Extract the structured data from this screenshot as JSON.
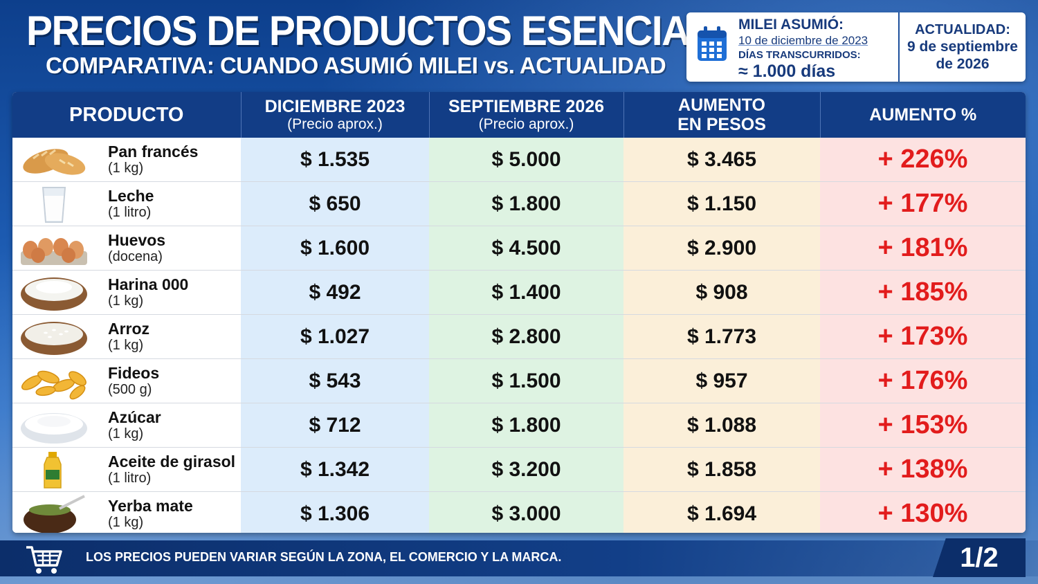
{
  "header": {
    "title": "PRECIOS DE PRODUCTOS ESENCIALES",
    "subtitle": "COMPARATIVA: CUANDO ASUMIÓ MILEI vs.  ACTUALIDAD"
  },
  "info": {
    "icon": "calendar-icon",
    "assumed_label": "MILEI ASUMIÓ:",
    "assumed_date": "10 de diciembre de 2023",
    "days_label": "DÍAS TRANSCURRIDOS:",
    "days_value": "≈ 1.000 días",
    "current_label": "ACTUALIDAD:",
    "current_date": "9 de septiembre de 2026"
  },
  "table": {
    "headers": {
      "product": "PRODUCTO",
      "dec_main": "DICIEMBRE 2023",
      "dec_sub": "(Precio aprox.)",
      "sep_main": "SEPTIEMBRE 2026",
      "sep_sub": "(Precio aprox.)",
      "inc_main": "AUMENTO",
      "inc_sub": "EN PESOS",
      "pct": "AUMENTO %"
    },
    "rows": [
      {
        "icon": "bread-icon",
        "name": "Pan francés",
        "unit": "(1 kg)",
        "dec": "$ 1.535",
        "sep": "$ 5.000",
        "inc": "$ 3.465",
        "pct": "+ 226%"
      },
      {
        "icon": "milk-icon",
        "name": "Leche",
        "unit": "(1 litro)",
        "dec": "$ 650",
        "sep": "$ 1.800",
        "inc": "$ 1.150",
        "pct": "+ 177%"
      },
      {
        "icon": "eggs-icon",
        "name": "Huevos",
        "unit": "(docena)",
        "dec": "$ 1.600",
        "sep": "$ 4.500",
        "inc": "$ 2.900",
        "pct": "+ 181%"
      },
      {
        "icon": "flour-icon",
        "name": "Harina 000",
        "unit": "(1 kg)",
        "dec": "$ 492",
        "sep": "$ 1.400",
        "inc": "$ 908",
        "pct": "+ 185%"
      },
      {
        "icon": "rice-icon",
        "name": "Arroz",
        "unit": "(1 kg)",
        "dec": "$ 1.027",
        "sep": "$ 2.800",
        "inc": "$ 1.773",
        "pct": "+ 173%"
      },
      {
        "icon": "pasta-icon",
        "name": "Fideos",
        "unit": "(500 g)",
        "dec": "$ 543",
        "sep": "$ 1.500",
        "inc": "$ 957",
        "pct": "+ 176%"
      },
      {
        "icon": "sugar-icon",
        "name": "Azúcar",
        "unit": "(1 kg)",
        "dec": "$ 712",
        "sep": "$ 1.800",
        "inc": "$ 1.088",
        "pct": "+ 153%"
      },
      {
        "icon": "oil-icon",
        "name": "Aceite de girasol",
        "unit": "(1 litro)",
        "dec": "$ 1.342",
        "sep": "$ 3.200",
        "inc": "$ 1.858",
        "pct": "+ 138%"
      },
      {
        "icon": "mate-icon",
        "name": "Yerba mate",
        "unit": "(1 kg)",
        "dec": "$ 1.306",
        "sep": "$ 3.000",
        "inc": "$ 1.694",
        "pct": "+ 130%"
      }
    ]
  },
  "footer": {
    "icon": "cart-icon",
    "note": "LOS PRECIOS PUEDEN VARIAR SEGÚN LA ZONA, EL COMERCIO Y LA MARCA.",
    "page": "1/2"
  },
  "colors": {
    "header_bg": "#123d86",
    "dec_col": "#dcecfb",
    "sep_col": "#def3e2",
    "inc_col": "#fbefd9",
    "pct_col": "#fde2e1",
    "pct_text": "#e21c1c"
  }
}
